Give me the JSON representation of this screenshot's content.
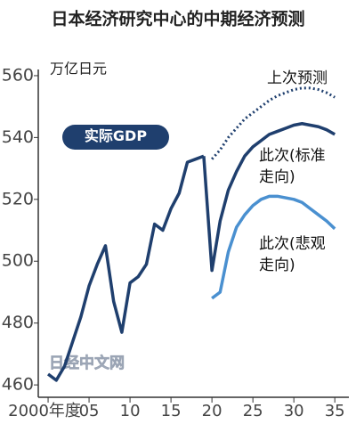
{
  "chart_data": {
    "type": "line",
    "title": "日本经济研究中心的中期经济预测",
    "y_label": "万亿日元",
    "watermark": "日经中文网",
    "xlim": [
      1998.8,
      2036.5
    ],
    "ylim": [
      456,
      562
    ],
    "xticks": [
      {
        "value": 2000,
        "label": "2000年度"
      },
      {
        "value": 2005,
        "label": "05"
      },
      {
        "value": 2010,
        "label": "10"
      },
      {
        "value": 2015,
        "label": "15"
      },
      {
        "value": 2020,
        "label": "20"
      },
      {
        "value": 2025,
        "label": "25"
      },
      {
        "value": 2030,
        "label": "30"
      },
      {
        "value": 2035,
        "label": "35"
      }
    ],
    "yticks": [
      460,
      480,
      500,
      520,
      540,
      560
    ],
    "series": [
      {
        "name": "实际GDP",
        "color": "#1f3f6e",
        "style": "solid",
        "x": [
          2000,
          2001,
          2002,
          2003,
          2004,
          2005,
          2006,
          2007,
          2008,
          2009,
          2010,
          2011,
          2012,
          2013,
          2014,
          2015,
          2016,
          2017,
          2018,
          2019
        ],
        "values": [
          463.5,
          461.5,
          466,
          474,
          482,
          492,
          499,
          505,
          487,
          477,
          493,
          495,
          499,
          512,
          510,
          517,
          522,
          532,
          533,
          534
        ]
      },
      {
        "name": "上次预测",
        "color": "#1f3f6e",
        "style": "dotted",
        "x": [
          2020,
          2021,
          2022,
          2023,
          2024,
          2025,
          2026,
          2027,
          2028,
          2029,
          2030,
          2031,
          2032,
          2033,
          2034,
          2035
        ],
        "values": [
          533,
          536,
          540,
          543,
          546,
          548,
          550,
          552,
          553.5,
          554.5,
          555.5,
          556,
          556,
          555.5,
          554.5,
          553
        ]
      },
      {
        "name": "此次(标准\n走向)",
        "color": "#1f3f6e",
        "style": "solid",
        "x": [
          2019,
          2020,
          2021,
          2022,
          2023,
          2024,
          2025,
          2026,
          2027,
          2028,
          2029,
          2030,
          2031,
          2032,
          2033,
          2034,
          2035
        ],
        "values": [
          534,
          497,
          513,
          523,
          529,
          534,
          537,
          539,
          541,
          542,
          543,
          544,
          544.5,
          544,
          543.5,
          542.5,
          541
        ]
      },
      {
        "name": "此次(悲观\n走向)",
        "color": "#4a90d0",
        "style": "solid",
        "x": [
          2020,
          2021,
          2022,
          2023,
          2024,
          2025,
          2026,
          2027,
          2028,
          2029,
          2030,
          2031,
          2032,
          2033,
          2034,
          2035
        ],
        "values": [
          488,
          490,
          503,
          511,
          515,
          518,
          520,
          521,
          521,
          520.5,
          520,
          519,
          517,
          515,
          513,
          510.5
        ]
      }
    ]
  }
}
